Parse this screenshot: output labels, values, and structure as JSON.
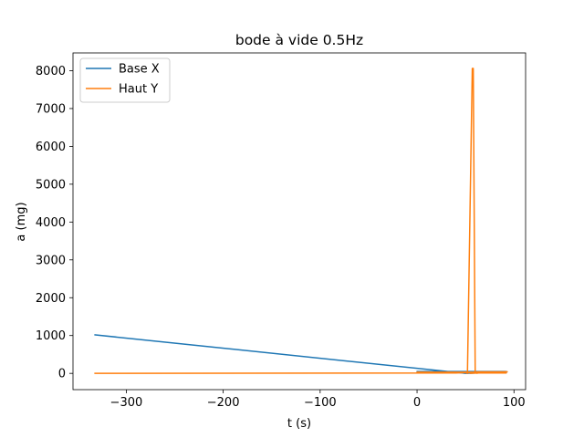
{
  "chart_data": {
    "type": "line",
    "title": "bode à vide 0.5Hz",
    "xlabel": "t (s)",
    "ylabel": "a (mg)",
    "xlim": [
      -355,
      112
    ],
    "ylim": [
      -430,
      8470
    ],
    "xticks": [
      -300,
      -200,
      -100,
      0,
      100
    ],
    "xtick_labels": [
      "−300",
      "−200",
      "−100",
      "0",
      "100"
    ],
    "yticks": [
      0,
      1000,
      2000,
      3000,
      4000,
      5000,
      6000,
      7000,
      8000
    ],
    "ytick_labels": [
      "0",
      "1000",
      "2000",
      "3000",
      "4000",
      "5000",
      "6000",
      "7000",
      "8000"
    ],
    "grid": false,
    "legend_position": "top-left",
    "series": [
      {
        "name": "Base X",
        "color": "#1f77b4",
        "x": [
          -333,
          50,
          92,
          90,
          60,
          92,
          55,
          93,
          0,
          92
        ],
        "y": [
          1020,
          0,
          40,
          10,
          20,
          30,
          10,
          40,
          50,
          50
        ]
      },
      {
        "name": "Haut Y",
        "color": "#ff7f0e",
        "x": [
          -333,
          40,
          50,
          52,
          57,
          58,
          60,
          62,
          62,
          92,
          55,
          93,
          60,
          92,
          0,
          90
        ],
        "y": [
          0,
          10,
          20,
          0,
          8060,
          8060,
          40,
          0,
          40,
          40,
          0,
          40,
          10,
          10,
          30,
          30
        ]
      }
    ]
  }
}
